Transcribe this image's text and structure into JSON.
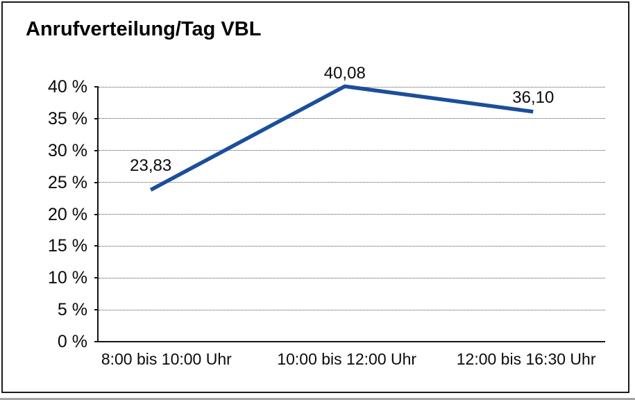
{
  "chart_data": {
    "type": "line",
    "title": "Anrufverteilung/Tag VBL",
    "categories": [
      "8:00 bis 10:00 Uhr",
      "10:00 bis 12:00 Uhr",
      "12:00 bis 16:30 Uhr"
    ],
    "values": [
      23.83,
      40.08,
      36.1
    ],
    "data_labels": [
      "23,83",
      "40,08",
      "36,10"
    ],
    "yticks": [
      0,
      5,
      10,
      15,
      20,
      25,
      30,
      35,
      40
    ],
    "ytick_labels": [
      "0 %",
      "5 %",
      "10 %",
      "15 %",
      "20 %",
      "25 %",
      "30 %",
      "35 %",
      "40 %"
    ],
    "ylim": [
      0,
      40
    ],
    "xlabel": "",
    "ylabel": "",
    "grid": "horizontal-dotted",
    "legend": "none",
    "line_color": "#1b4e9b",
    "text_color": "#0a0a0a",
    "frame_color": "#1a1a1a"
  }
}
